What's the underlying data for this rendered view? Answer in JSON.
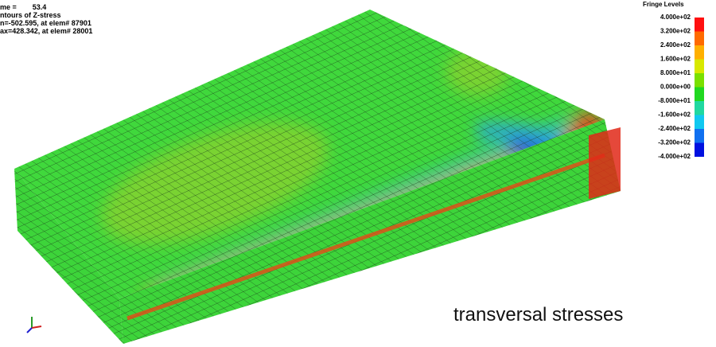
{
  "header": {
    "lines": [
      "me =        53.4",
      "ntours of Z-stress",
      "n=-502.595, at elem# 87901",
      "ax=428.342, at elem# 28001"
    ]
  },
  "legend": {
    "title": "Fringe Levels",
    "levels": [
      "4.000e+02",
      "3.200e+02",
      "2.400e+02",
      "1.600e+02",
      "8.000e+01",
      "0.000e+00",
      "-8.000e+01",
      "-1.600e+02",
      "-2.400e+02",
      "-3.200e+02",
      "-4.000e+02"
    ]
  },
  "caption": "transversal stresses"
}
